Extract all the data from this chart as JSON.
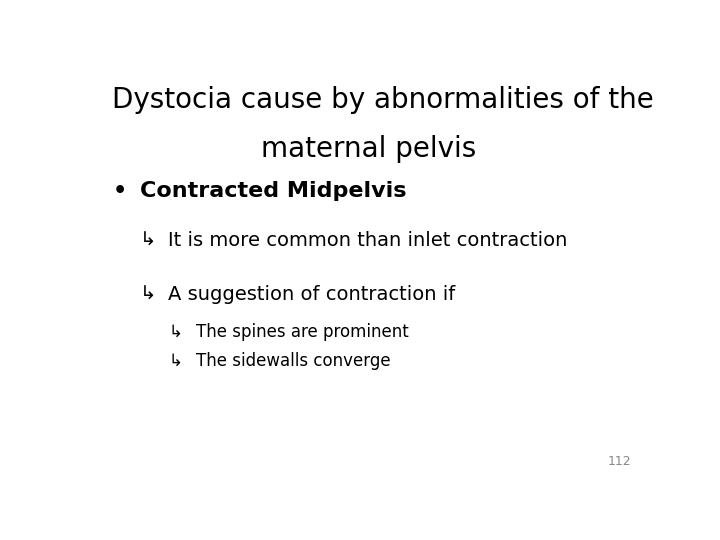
{
  "background_color": "#ffffff",
  "title_line1": "Dystocia cause by abnormalities of the",
  "title_line2": "maternal pelvis",
  "title_fontsize": 20,
  "title_color": "#000000",
  "bullet1": "Contracted Midpelvis",
  "bullet1_fontsize": 16,
  "sub1_text": "It is more common than inlet contraction",
  "sub1_fontsize": 14,
  "sub2_text": "A suggestion of contraction if",
  "sub2_fontsize": 14,
  "sub3a_text": "The spines are prominent",
  "sub3a_fontsize": 12,
  "sub3b_text": "The sidewalls converge",
  "sub3b_fontsize": 12,
  "page_number": "112",
  "page_number_fontsize": 9,
  "page_number_color": "#888888",
  "arrow_char": "↳",
  "bullet_char": "•"
}
